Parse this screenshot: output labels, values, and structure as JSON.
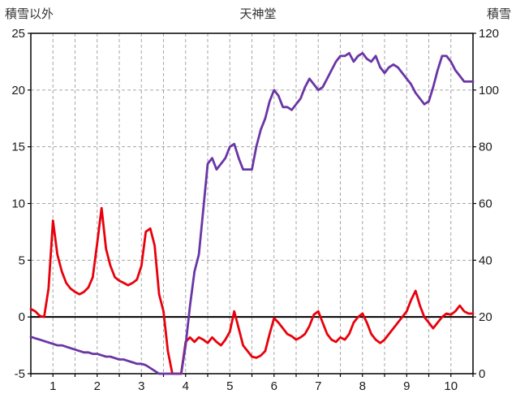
{
  "chart_data": {
    "type": "line",
    "title": "天神堂",
    "left_axis": {
      "label": "積雪以外",
      "min": -5,
      "max": 25,
      "ticks": [
        25,
        20,
        15,
        10,
        5,
        0,
        -5
      ]
    },
    "right_axis": {
      "label": "積雪",
      "min": 0,
      "max": 120,
      "ticks": [
        120,
        100,
        80,
        60,
        40,
        20,
        0
      ]
    },
    "x_axis": {
      "min": 0.5,
      "max": 10.5,
      "minor_step": 0.5,
      "tick_labels": [
        1,
        2,
        3,
        4,
        5,
        6,
        7,
        8,
        9,
        10
      ]
    },
    "grid": true,
    "legend": "none",
    "x_start": 0.5,
    "x_step": 0.1,
    "series": [
      {
        "name": "積雪以外",
        "axis": "left",
        "color": "#e8000b",
        "values": [
          0.7,
          0.5,
          0.1,
          0.0,
          2.5,
          8.5,
          5.5,
          4.0,
          3.0,
          2.5,
          2.2,
          2.0,
          2.2,
          2.6,
          3.5,
          6.5,
          9.6,
          6.0,
          4.5,
          3.5,
          3.2,
          3.0,
          2.8,
          3.0,
          3.3,
          4.5,
          7.5,
          7.8,
          6.3,
          2.0,
          0.5,
          -3.0,
          -5.0,
          -5.0,
          -5.0,
          -2.2,
          -1.8,
          -2.2,
          -1.8,
          -2.0,
          -2.3,
          -1.8,
          -2.2,
          -2.5,
          -2.0,
          -1.3,
          0.5,
          -1.0,
          -2.5,
          -3.0,
          -3.5,
          -3.6,
          -3.4,
          -3.0,
          -1.5,
          -0.1,
          -0.5,
          -1.0,
          -1.5,
          -1.7,
          -2.0,
          -1.8,
          -1.5,
          -0.8,
          0.2,
          0.5,
          -0.5,
          -1.5,
          -2.0,
          -2.2,
          -1.8,
          -2.0,
          -1.5,
          -0.5,
          0.0,
          0.3,
          -0.5,
          -1.5,
          -2.0,
          -2.3,
          -2.0,
          -1.5,
          -1.0,
          -0.5,
          0.0,
          0.5,
          1.5,
          2.3,
          1.0,
          0.0,
          -0.5,
          -1.0,
          -0.5,
          0.0,
          0.3,
          0.2,
          0.5,
          1.0,
          0.5,
          0.3,
          0.3
        ]
      },
      {
        "name": "積雪",
        "axis": "right",
        "color": "#6a35a5",
        "values": [
          13,
          12.5,
          12,
          11.5,
          11,
          10.5,
          10,
          10,
          9.5,
          9,
          8.5,
          8,
          7.5,
          7.5,
          7,
          7,
          6.5,
          6,
          6,
          5.5,
          5,
          5,
          4.5,
          4,
          3.5,
          3.5,
          3,
          2,
          1,
          0,
          0,
          0,
          0,
          0,
          0,
          10,
          24,
          36,
          42,
          58,
          74,
          76,
          72,
          74,
          76,
          80,
          81,
          76,
          72,
          72,
          72,
          80,
          86,
          90,
          96,
          100,
          98,
          94,
          94,
          93,
          95,
          97,
          101,
          104,
          102,
          100,
          101,
          104,
          107,
          110,
          112,
          112,
          113,
          110,
          112,
          113,
          111,
          110,
          112,
          108,
          106,
          108,
          109,
          108,
          106,
          104,
          102,
          99,
          97,
          95,
          96,
          101,
          107,
          112,
          112,
          110,
          107,
          105,
          103,
          103,
          103
        ]
      }
    ],
    "colors": {
      "grid": "#a6a6a6",
      "frame": "#000000",
      "zero_line": "#000000",
      "text": "#1a1a1a"
    }
  }
}
